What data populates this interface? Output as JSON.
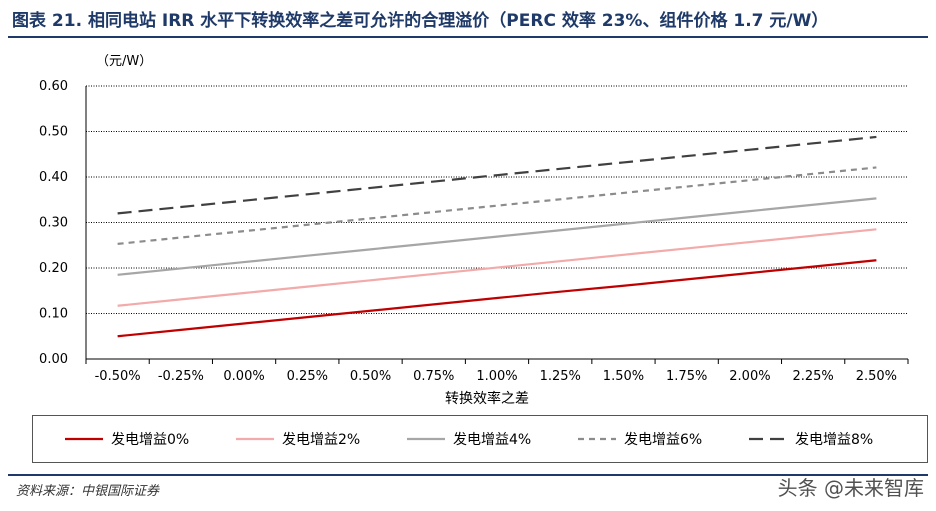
{
  "title": "图表 21. 相同电站 IRR 水平下转换效率之差可允许的合理溢价（PERC 效率 23%、组件价格 1.7 元/W）",
  "unit_label": "（元/W）",
  "source": "资料来源：中银国际证券",
  "watermark": "头条 @未来智库",
  "chart_data": {
    "type": "line",
    "title": "相同电站 IRR 水平下转换效率之差可允许的合理溢价（PERC 效率 23%、组件价格 1.7 元/W）",
    "xlabel": "转换效率之差",
    "ylabel": "（元/W）",
    "categories": [
      "-0.50%",
      "-0.25%",
      "0.00%",
      "0.25%",
      "0.50%",
      "0.75%",
      "1.00%",
      "1.25%",
      "1.50%",
      "1.75%",
      "2.00%",
      "2.25%",
      "2.50%"
    ],
    "ylim": [
      0,
      0.6
    ],
    "yticks": [
      "0.00",
      "0.10",
      "0.20",
      "0.30",
      "0.40",
      "0.50",
      "0.60"
    ],
    "grid": true,
    "legend_position": "bottom",
    "series": [
      {
        "name": "发电增益0%",
        "color": "#c00000",
        "dash": "solid",
        "values": [
          0.05,
          0.064,
          0.078,
          0.092,
          0.106,
          0.12,
          0.134,
          0.148,
          0.161,
          0.175,
          0.189,
          0.203,
          0.217
        ]
      },
      {
        "name": "发电增益2%",
        "color": "#f2aaaa",
        "dash": "solid",
        "values": [
          0.117,
          0.131,
          0.145,
          0.159,
          0.173,
          0.187,
          0.201,
          0.215,
          0.229,
          0.243,
          0.257,
          0.271,
          0.285
        ]
      },
      {
        "name": "发电增益4%",
        "color": "#a6a6a6",
        "dash": "solid",
        "values": [
          0.185,
          0.199,
          0.213,
          0.227,
          0.241,
          0.255,
          0.269,
          0.283,
          0.297,
          0.311,
          0.325,
          0.339,
          0.353
        ]
      },
      {
        "name": "发电增益6%",
        "color": "#8c8c8c",
        "dash": "short",
        "values": [
          0.253,
          0.267,
          0.281,
          0.295,
          0.309,
          0.323,
          0.337,
          0.351,
          0.365,
          0.379,
          0.393,
          0.407,
          0.421
        ]
      },
      {
        "name": "发电增益8%",
        "color": "#404040",
        "dash": "long",
        "values": [
          0.32,
          0.334,
          0.348,
          0.362,
          0.376,
          0.39,
          0.404,
          0.418,
          0.432,
          0.446,
          0.46,
          0.474,
          0.488
        ]
      }
    ]
  }
}
